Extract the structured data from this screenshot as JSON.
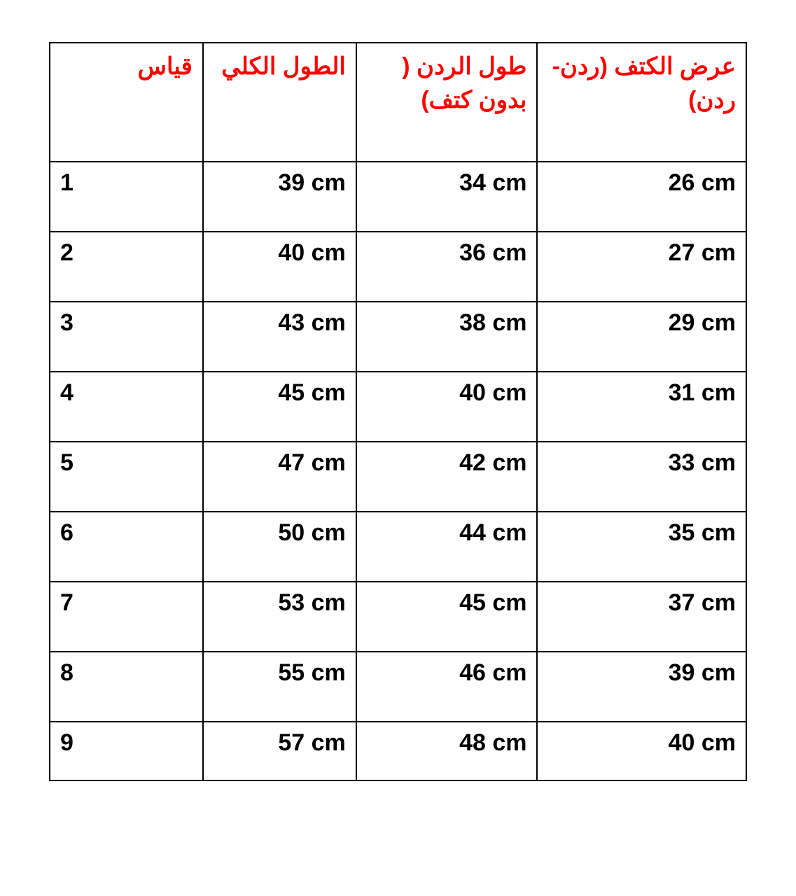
{
  "table": {
    "type": "table",
    "header_color": "#ff0000",
    "body_color": "#000000",
    "border_color": "#000000",
    "background_color": "#ffffff",
    "font_size": 34,
    "font_weight": "bold",
    "columns": [
      {
        "key": "size",
        "label": "قياس",
        "align_header": "right",
        "align_body": "left"
      },
      {
        "key": "total_length",
        "label": "الطول الكلي",
        "align_header": "right",
        "align_body": "right"
      },
      {
        "key": "sleeve_length",
        "label": "طول الردن ( بدون كتف)",
        "align_header": "right",
        "align_body": "right"
      },
      {
        "key": "shoulder_width",
        "label": "عرض الكتف (ردن-ردن)",
        "align_header": "right",
        "align_body": "right"
      }
    ],
    "rows": [
      {
        "size": "1",
        "total_length": "39 cm",
        "sleeve_length": "34 cm",
        "shoulder_width": "26 cm",
        "tall": true
      },
      {
        "size": "2",
        "total_length": "40 cm",
        "sleeve_length": "36 cm",
        "shoulder_width": "27 cm",
        "tall": true
      },
      {
        "size": "3",
        "total_length": "43 cm",
        "sleeve_length": "38 cm",
        "shoulder_width": "29 cm",
        "tall": true
      },
      {
        "size": "4",
        "total_length": "45 cm",
        "sleeve_length": "40 cm",
        "shoulder_width": "31 cm",
        "tall": true
      },
      {
        "size": "5",
        "total_length": "47 cm",
        "sleeve_length": "42 cm",
        "shoulder_width": "33 cm",
        "tall": true
      },
      {
        "size": "6",
        "total_length": "50 cm",
        "sleeve_length": "44 cm",
        "shoulder_width": "35 cm",
        "tall": true
      },
      {
        "size": "7",
        "total_length": "53 cm",
        "sleeve_length": "45 cm",
        "shoulder_width": "37 cm",
        "tall": true
      },
      {
        "size": "8",
        "total_length": "55 cm",
        "sleeve_length": "46 cm",
        "shoulder_width": "39 cm",
        "tall": true
      },
      {
        "size": "9",
        "total_length": "57 cm",
        "sleeve_length": "48 cm",
        "shoulder_width": "40 cm",
        "tall": false
      }
    ]
  }
}
